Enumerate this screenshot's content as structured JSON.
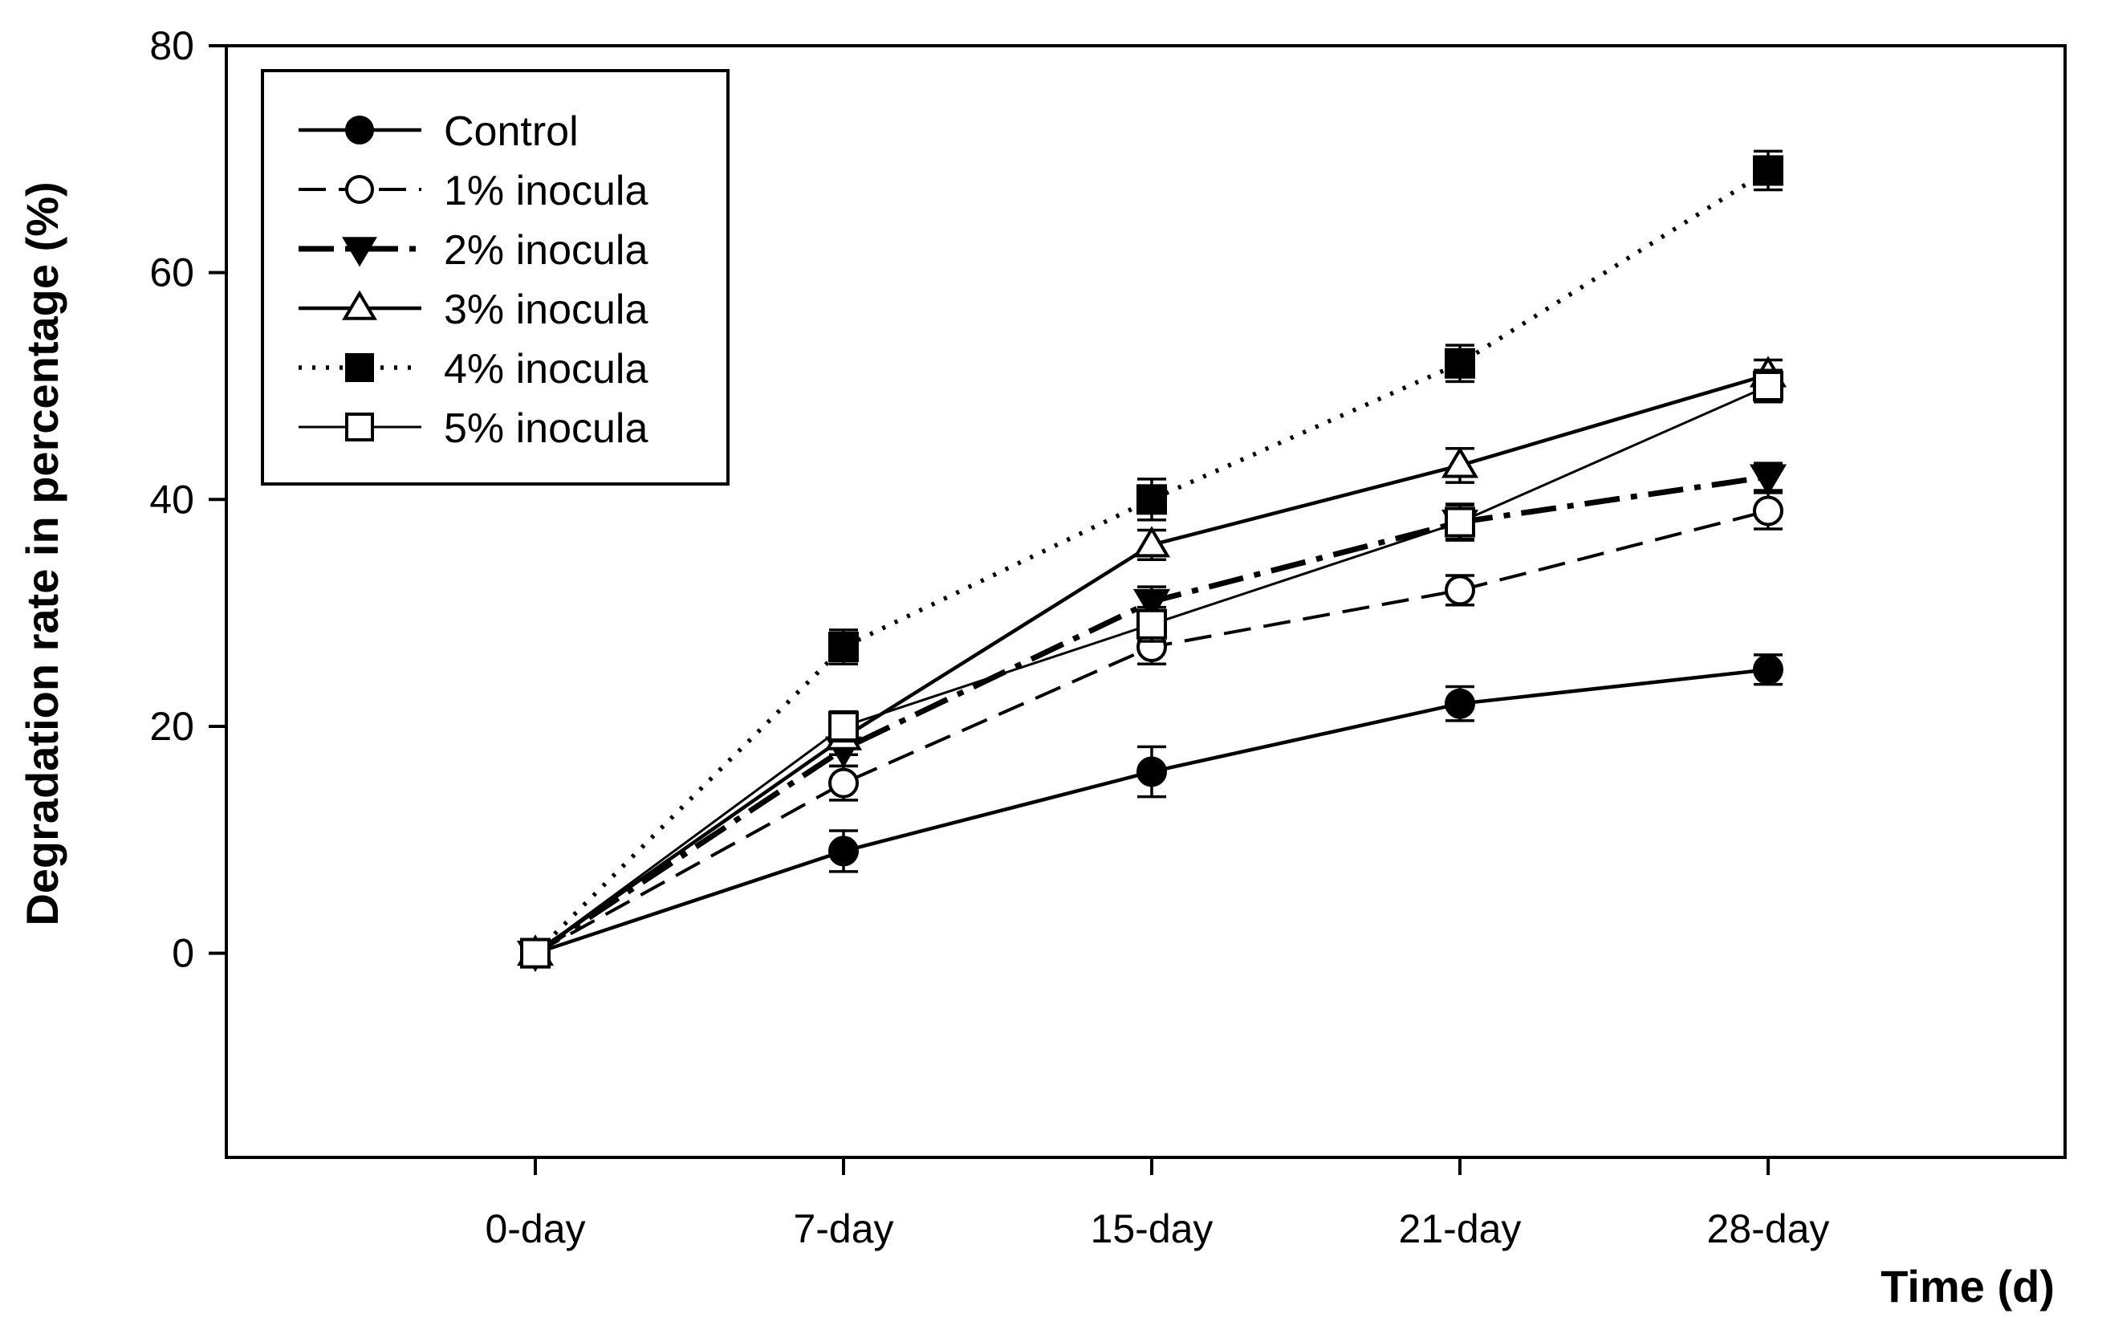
{
  "chart_data": {
    "type": "line",
    "title": "",
    "xlabel": "Time (d)",
    "ylabel": "Degradation rate in percentage (%)",
    "categories": [
      "0-day",
      "7-day",
      "15-day",
      "21-day",
      "28-day"
    ],
    "ylim": [
      -18,
      80
    ],
    "yticks": [
      "80",
      "60",
      "40",
      "20",
      "0"
    ],
    "ytick_values": [
      80,
      60,
      40,
      20,
      0
    ],
    "grid": false,
    "legend_position": "top-left",
    "series": [
      {
        "name": "Control",
        "values": [
          0,
          9,
          16,
          22,
          25
        ],
        "errors": [
          0,
          1.8,
          2.2,
          1.5,
          1.3
        ],
        "marker": "circle-filled",
        "line": "solid",
        "color": "#000000"
      },
      {
        "name": "1% inocula",
        "values": [
          0,
          15,
          27,
          32,
          39
        ],
        "errors": [
          0,
          1.5,
          1.5,
          1.3,
          1.6
        ],
        "marker": "circle-open",
        "line": "dashed",
        "color": "#000000"
      },
      {
        "name": "2% inocula",
        "values": [
          0,
          18,
          31,
          38,
          42
        ],
        "errors": [
          0,
          1.5,
          1.3,
          1.5,
          1.2
        ],
        "marker": "triangle-down-filled",
        "line": "dash-dot",
        "color": "#000000"
      },
      {
        "name": "3% inocula",
        "values": [
          0,
          19,
          36,
          43,
          51
        ],
        "errors": [
          0,
          1.5,
          1.3,
          1.5,
          1.3
        ],
        "marker": "triangle-up-open",
        "line": "solid",
        "color": "#000000"
      },
      {
        "name": "4% inocula",
        "values": [
          0,
          27,
          40,
          52,
          69
        ],
        "errors": [
          0,
          1.5,
          1.8,
          1.6,
          1.7
        ],
        "marker": "square-filled",
        "line": "dotted",
        "color": "#000000"
      },
      {
        "name": "5% inocula",
        "values": [
          0,
          20,
          29,
          38,
          50
        ],
        "errors": [
          0,
          1.3,
          1.5,
          1.6,
          1.4
        ],
        "marker": "square-open",
        "line": "solid-thin",
        "color": "#000000"
      }
    ]
  }
}
